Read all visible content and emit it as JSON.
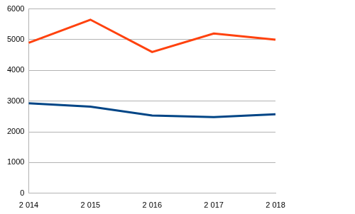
{
  "chart_data": {
    "type": "line",
    "categories": [
      "2 014",
      "2 015",
      "2 016",
      "2 017",
      "2 018"
    ],
    "series": [
      {
        "color": "#ff420e",
        "values": [
          4900,
          5650,
          4600,
          5200,
          5000
        ]
      },
      {
        "color": "#004586",
        "values": [
          2930,
          2820,
          2530,
          2480,
          2570
        ]
      }
    ],
    "ylim": [
      0,
      6000
    ],
    "yticks": [
      0,
      1000,
      2000,
      3000,
      4000,
      5000,
      6000
    ],
    "grid": true
  }
}
